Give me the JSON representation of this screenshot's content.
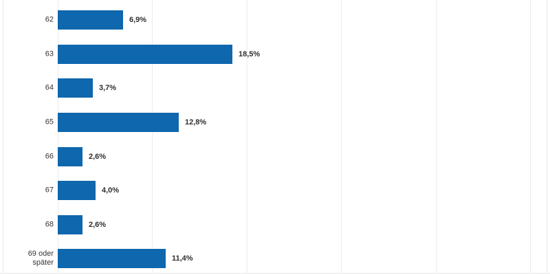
{
  "chart_data": {
    "type": "bar",
    "orientation": "horizontal",
    "title": "",
    "categories": [
      "62",
      "63",
      "64",
      "65",
      "66",
      "67",
      "68",
      "69 oder später"
    ],
    "values": [
      6.9,
      18.5,
      3.7,
      12.8,
      2.6,
      4.0,
      2.6,
      11.4
    ],
    "value_labels": [
      "6,9%",
      "18,5%",
      "3,7%",
      "12,8%",
      "2,6%",
      "4,0%",
      "2,6%",
      "11,4%"
    ],
    "xlim": [
      0,
      50
    ],
    "grid_interval": 10,
    "grid": "vertical-only",
    "axis_tick_labels_visible": false,
    "legend": "none",
    "bar_color": "#0f67ad",
    "gridline_color": "#ececec",
    "frame_color": "#e7e7e7",
    "category_label_color": "#333333",
    "value_label_color": "#2e2e2e"
  }
}
